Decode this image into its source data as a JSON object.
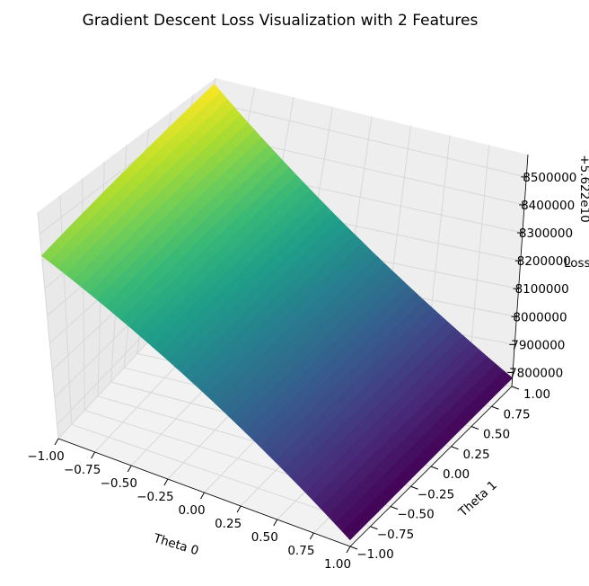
{
  "chart_data": {
    "type": "surface3d",
    "title": "Gradient Descent Loss Visualization with 2 Features",
    "xlabel": "Theta 0",
    "ylabel": "Theta 1",
    "zlabel": "Loss",
    "z_offset_label": "+5.622e10",
    "colormap": "viridis",
    "xlim": [
      -1.0,
      1.0
    ],
    "ylim": [
      -1.0,
      1.0
    ],
    "zlim": [
      7750000,
      8580000
    ],
    "x_ticks": [
      "−1.00",
      "−0.75",
      "−0.50",
      "−0.25",
      "0.00",
      "0.25",
      "0.50",
      "0.75",
      "1.00"
    ],
    "y_ticks": [
      "−1.00",
      "−0.75",
      "−0.50",
      "−0.25",
      "0.00",
      "0.25",
      "0.50",
      "0.75",
      "1.00"
    ],
    "z_ticks": [
      "7800000",
      "7900000",
      "8000000",
      "8100000",
      "8200000",
      "8300000",
      "8400000",
      "8500000"
    ],
    "corner_values": {
      "theta0_min_theta1_min": 8420000,
      "theta0_max_theta1_min": 7770000,
      "theta0_min_theta1_max": 8560000,
      "theta0_max_theta1_max": 7780000
    },
    "grid": true
  }
}
